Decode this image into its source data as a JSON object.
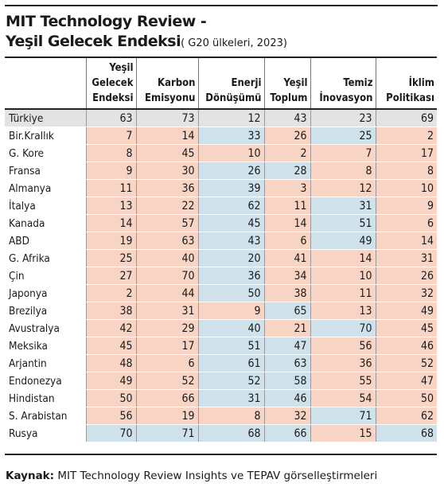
{
  "header": {
    "title": "MIT Technology Review -",
    "subtitle": "Yeşil Gelecek Endeksi",
    "note": "( G20 ülkeleri, 2023)"
  },
  "table": {
    "columns": [
      {
        "label_lines": [
          "",
          "",
          ""
        ]
      },
      {
        "label_lines": [
          "Yeşil",
          "Gelecek",
          "Endeksi"
        ]
      },
      {
        "label_lines": [
          "",
          "Karbon",
          "Emisyonu"
        ]
      },
      {
        "label_lines": [
          "",
          "Enerji",
          "Dönüşümü"
        ]
      },
      {
        "label_lines": [
          "",
          "Yeşil",
          "Toplum"
        ]
      },
      {
        "label_lines": [
          "",
          "Temiz",
          "İnovasyon"
        ]
      },
      {
        "label_lines": [
          "",
          "İklim",
          "Politikası"
        ]
      }
    ],
    "rows": [
      {
        "country": "Türkiye",
        "values": [
          "63",
          "73",
          "12",
          "43",
          "23",
          "69"
        ],
        "shade": [
          "",
          "",
          "",
          "",
          "",
          ""
        ],
        "highlight": true
      },
      {
        "country": "Bir.Krallık",
        "values": [
          "7",
          "14",
          "33",
          "26",
          "25",
          "2"
        ],
        "shade": [
          "hi",
          "hi",
          "lo",
          "hi",
          "lo",
          "hi"
        ]
      },
      {
        "country": "G. Kore",
        "values": [
          "8",
          "45",
          "10",
          "2",
          "7",
          "17"
        ],
        "shade": [
          "hi",
          "hi",
          "hi",
          "hi",
          "hi",
          "hi"
        ]
      },
      {
        "country": "Fransa",
        "values": [
          "9",
          "30",
          "26",
          "28",
          "8",
          "8"
        ],
        "shade": [
          "hi",
          "hi",
          "lo",
          "lo",
          "hi",
          "hi"
        ]
      },
      {
        "country": "Almanya",
        "values": [
          "11",
          "36",
          "39",
          "3",
          "12",
          "10"
        ],
        "shade": [
          "hi",
          "hi",
          "lo",
          "hi",
          "hi",
          "hi"
        ]
      },
      {
        "country": "İtalya",
        "values": [
          "13",
          "22",
          "62",
          "11",
          "31",
          "9"
        ],
        "shade": [
          "hi",
          "hi",
          "lo",
          "hi",
          "lo",
          "hi"
        ]
      },
      {
        "country": "Kanada",
        "values": [
          "14",
          "57",
          "45",
          "14",
          "51",
          "6"
        ],
        "shade": [
          "hi",
          "hi",
          "lo",
          "hi",
          "lo",
          "hi"
        ]
      },
      {
        "country": "ABD",
        "values": [
          "19",
          "63",
          "43",
          "6",
          "49",
          "14"
        ],
        "shade": [
          "hi",
          "hi",
          "lo",
          "hi",
          "lo",
          "hi"
        ]
      },
      {
        "country": "G. Afrika",
        "values": [
          "25",
          "40",
          "20",
          "41",
          "14",
          "31"
        ],
        "shade": [
          "hi",
          "hi",
          "lo",
          "hi",
          "hi",
          "hi"
        ]
      },
      {
        "country": "Çin",
        "values": [
          "27",
          "70",
          "36",
          "34",
          "10",
          "26"
        ],
        "shade": [
          "hi",
          "hi",
          "lo",
          "hi",
          "hi",
          "hi"
        ]
      },
      {
        "country": "Japonya",
        "values": [
          "2",
          "44",
          "50",
          "38",
          "11",
          "32"
        ],
        "shade": [
          "hi",
          "hi",
          "lo",
          "hi",
          "hi",
          "hi"
        ]
      },
      {
        "country": "Brezilya",
        "values": [
          "38",
          "31",
          "9",
          "65",
          "13",
          "49"
        ],
        "shade": [
          "hi",
          "hi",
          "hi",
          "lo",
          "hi",
          "hi"
        ]
      },
      {
        "country": "Avustralya",
        "values": [
          "42",
          "29",
          "40",
          "21",
          "70",
          "45"
        ],
        "shade": [
          "hi",
          "hi",
          "lo",
          "hi",
          "lo",
          "hi"
        ]
      },
      {
        "country": "Meksika",
        "values": [
          "45",
          "17",
          "51",
          "47",
          "56",
          "46"
        ],
        "shade": [
          "hi",
          "hi",
          "lo",
          "lo",
          "hi",
          "hi"
        ]
      },
      {
        "country": "Arjantin",
        "values": [
          "48",
          "6",
          "61",
          "63",
          "36",
          "52"
        ],
        "shade": [
          "hi",
          "hi",
          "lo",
          "lo",
          "hi",
          "hi"
        ]
      },
      {
        "country": "Endonezya",
        "values": [
          "49",
          "52",
          "52",
          "58",
          "55",
          "47"
        ],
        "shade": [
          "hi",
          "hi",
          "lo",
          "lo",
          "hi",
          "hi"
        ]
      },
      {
        "country": "Hindistan",
        "values": [
          "50",
          "66",
          "31",
          "46",
          "54",
          "50"
        ],
        "shade": [
          "hi",
          "hi",
          "lo",
          "lo",
          "hi",
          "hi"
        ]
      },
      {
        "country": "S. Arabistan",
        "values": [
          "56",
          "19",
          "8",
          "32",
          "71",
          "62"
        ],
        "shade": [
          "hi",
          "hi",
          "hi",
          "hi",
          "lo",
          "hi"
        ]
      },
      {
        "country": "Rusya",
        "values": [
          "70",
          "71",
          "68",
          "66",
          "15",
          "68"
        ],
        "shade": [
          "lo",
          "lo",
          "lo",
          "lo",
          "hi",
          "lo"
        ]
      }
    ]
  },
  "footer": {
    "source_label": "Kaynak:",
    "source_text": " MIT Technology Review Insights ve TEPAV görselleştirmeleri"
  }
}
